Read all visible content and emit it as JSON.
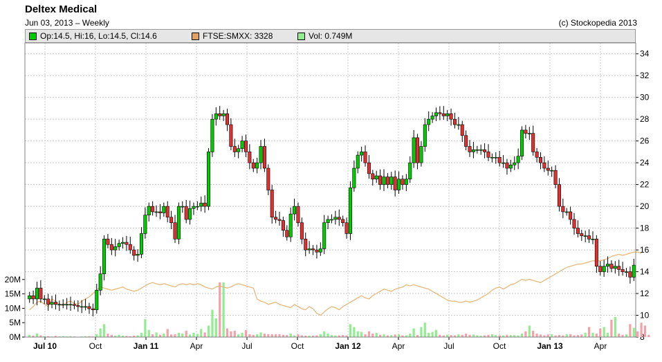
{
  "header": {
    "title": "Deltex Medical",
    "subtitle": "Jun 03, 2013 – Weekly",
    "copyright": "(c) Stockopedia 2013"
  },
  "legend": [
    {
      "label": "Op:14.5, Hi:16, Lo:14.5, Cl:14.6",
      "color": "#00cc00"
    },
    {
      "label": "FTSE:SMXX: 3328",
      "color": "#e0a060"
    },
    {
      "label": "Vol: 0.749M",
      "color": "#90ee90"
    }
  ],
  "chart_data": {
    "type": "candlestick",
    "title": "Deltex Medical",
    "x_tick_labels": [
      "Jul 10",
      "Oct",
      "Jan 11",
      "Apr",
      "Jul",
      "Oct",
      "Jan 12",
      "Apr",
      "Jul",
      "Oct",
      "Jan 13",
      "Apr"
    ],
    "price_axis": {
      "ylim": [
        8,
        35
      ],
      "ticks": [
        8,
        10,
        12,
        14,
        16,
        18,
        20,
        22,
        24,
        26,
        28,
        30,
        32,
        34
      ]
    },
    "volume_axis": {
      "ylim": [
        0,
        25
      ],
      "ticks": [
        "0M",
        "5M",
        "10M",
        "15M",
        "20M"
      ]
    },
    "grid": true,
    "series": [
      {
        "name": "Deltex Medical",
        "ohlc_close": [
          11.8,
          11.5,
          12.5,
          11.5,
          11.5,
          11.0,
          11.2,
          11.0,
          11.0,
          11.0,
          11.0,
          11.0,
          10.9,
          10.8,
          10.8,
          10.8,
          10.6,
          10.5,
          12.3,
          13.8,
          17.0,
          16.5,
          16.0,
          16.3,
          16.6,
          16.7,
          16.5,
          16.0,
          15.5,
          15.6,
          17.5,
          19.2,
          20.0,
          19.5,
          19.5,
          19.4,
          20.0,
          19.0,
          18.5,
          17.0,
          20.0,
          20.0,
          18.8,
          19.8,
          20.0,
          20.0,
          20.3,
          20.0,
          25.0,
          28.0,
          28.5,
          28.3,
          28.5,
          27.5,
          25.5,
          25.0,
          25.3,
          26.0,
          25.0,
          24.0,
          23.5,
          24.0,
          25.5,
          23.5,
          21.5,
          19.0,
          18.8,
          18.7,
          17.8,
          17.2,
          19.3,
          20.0,
          18.5,
          17.0,
          16.0,
          16.1,
          16.0,
          15.8,
          16.1,
          18.5,
          18.8,
          18.8,
          19.0,
          18.8,
          18.5,
          17.5,
          21.7,
          23.5,
          24.7,
          25.0,
          24.0,
          23.0,
          22.5,
          22.8,
          22.0,
          22.7,
          22.0,
          22.7,
          21.5,
          22.5,
          22.0,
          22.5,
          24.0,
          26.3,
          24.0,
          25.5,
          27.5,
          28.0,
          28.3,
          28.6,
          28.5,
          28.3,
          28.5,
          28.0,
          27.5,
          27.5,
          26.5,
          25.5,
          25.0,
          25.2,
          25.2,
          25.2,
          25.0,
          24.5,
          24.5,
          24.5,
          24.0,
          24.0,
          23.5,
          23.8,
          24.0,
          24.6,
          27.0,
          26.7,
          26.7,
          25.0,
          24.5,
          24.0,
          23.5,
          23.3,
          23.3,
          22.0,
          20.0,
          19.5,
          19.5,
          18.8,
          18.0,
          17.5,
          17.3,
          17.3,
          17.0,
          17.0,
          14.5,
          14.0,
          14.5,
          14.7,
          14.3,
          14.5,
          14.2,
          14.0,
          14.0,
          13.5,
          14.6
        ]
      },
      {
        "name": "FTSE:SMXX",
        "values_price_scale": [
          10.5,
          10.8,
          11.2,
          11.3,
          11.0,
          10.8,
          11.5,
          11.3,
          11.0,
          10.9,
          11.2,
          11.3,
          11.1,
          11.0,
          11.3,
          11.5,
          11.7,
          12.0,
          12.3,
          12.6,
          12.5,
          12.4,
          12.3,
          12.4,
          12.5,
          12.6,
          12.4,
          12.3,
          12.2,
          12.3,
          12.5,
          12.7,
          12.9,
          13.0,
          12.9,
          12.8,
          12.9,
          12.8,
          12.7,
          12.6,
          12.8,
          12.9,
          12.8,
          12.9,
          12.8,
          12.9,
          12.8,
          12.6,
          12.5,
          12.4,
          12.6,
          12.7,
          12.6,
          12.5,
          12.6,
          12.8,
          12.9,
          12.8,
          12.7,
          12.6,
          12.5,
          11.5,
          11.3,
          11.2,
          11.0,
          11.1,
          11.2,
          11.0,
          10.9,
          10.8,
          10.7,
          11.0,
          10.8,
          10.6,
          10.5,
          10.8,
          10.6,
          10.2,
          10.0,
          10.3,
          10.6,
          10.8,
          10.7,
          10.5,
          10.8,
          11.0,
          11.2,
          11.4,
          11.6,
          11.8,
          11.6,
          11.5,
          11.8,
          12.0,
          12.2,
          12.4,
          12.3,
          12.2,
          12.4,
          12.5,
          12.6,
          12.8,
          12.7,
          12.8,
          12.7,
          12.6,
          12.5,
          12.4,
          12.2,
          12.0,
          11.8,
          11.6,
          11.4,
          11.3,
          11.3,
          11.2,
          11.2,
          11.3,
          11.2,
          11.3,
          11.4,
          11.6,
          11.8,
          12.0,
          12.3,
          12.5,
          12.6,
          12.4,
          12.6,
          12.8,
          12.9,
          13.1,
          13.3,
          13.2,
          13.3,
          13.2,
          13.1,
          13.0,
          13.2,
          13.4,
          13.6,
          13.8,
          14.0,
          14.2,
          14.4,
          14.5,
          14.6,
          14.7,
          14.7,
          14.8,
          14.9,
          15.0,
          15.0,
          15.0,
          15.1,
          15.2,
          15.4,
          15.5,
          15.6,
          15.5,
          15.6,
          15.7,
          15.8,
          15.8,
          15.7
        ]
      },
      {
        "name": "Vol",
        "values_millions": [
          0.8,
          0.5,
          1.2,
          0.6,
          0.3,
          0.3,
          0.2,
          0.4,
          0.2,
          0.3,
          0.2,
          0.3,
          0.2,
          0.1,
          0.2,
          0.3,
          0.3,
          0.2,
          1.0,
          3.0,
          4.5,
          1.2,
          0.8,
          0.5,
          0.8,
          0.5,
          0.4,
          0.3,
          0.5,
          0.6,
          1.5,
          6.2,
          2.5,
          1.0,
          1.6,
          0.8,
          1.2,
          2.8,
          0.9,
          1.0,
          1.5,
          1.2,
          2.2,
          0.9,
          1.5,
          1.1,
          2.8,
          1.6,
          4.0,
          9.5,
          6.5,
          19.0,
          19.0,
          3.0,
          2.0,
          2.2,
          1.0,
          1.5,
          2.4,
          1.0,
          0.8,
          1.0,
          1.6,
          1.2,
          1.0,
          1.0,
          1.0,
          1.0,
          0.8,
          0.7,
          1.2,
          0.6,
          1.0,
          0.6,
          0.5,
          0.5,
          0.5,
          0.6,
          1.0,
          2.0,
          1.2,
          0.7,
          0.6,
          0.6,
          0.7,
          0.6,
          4.5,
          3.5,
          2.0,
          1.8,
          1.0,
          2.0,
          1.2,
          1.5,
          0.8,
          1.0,
          0.6,
          0.7,
          0.9,
          1.0,
          0.6,
          0.6,
          1.2,
          3.0,
          0.7,
          3.5,
          5.0,
          1.5,
          1.8,
          2.5,
          0.8,
          0.6,
          0.8,
          0.7,
          0.6,
          1.0,
          0.8,
          1.2,
          0.8,
          0.9,
          0.6,
          0.5,
          0.6,
          0.8,
          1.0,
          0.7,
          0.6,
          0.6,
          0.8,
          0.7,
          0.7,
          0.6,
          1.2,
          2.0,
          4.0,
          2.2,
          1.2,
          0.9,
          0.6,
          0.9,
          1.0,
          0.6,
          0.7,
          0.6,
          1.0,
          1.0,
          0.6,
          0.7,
          0.9,
          1.5,
          3.5,
          1.5,
          1.2,
          3.0,
          3.5,
          1.5,
          6.0,
          7.0,
          1.2,
          0.8,
          1.0,
          4.5,
          3.2,
          2.0,
          5.0,
          4.0,
          0.8
        ]
      }
    ]
  }
}
